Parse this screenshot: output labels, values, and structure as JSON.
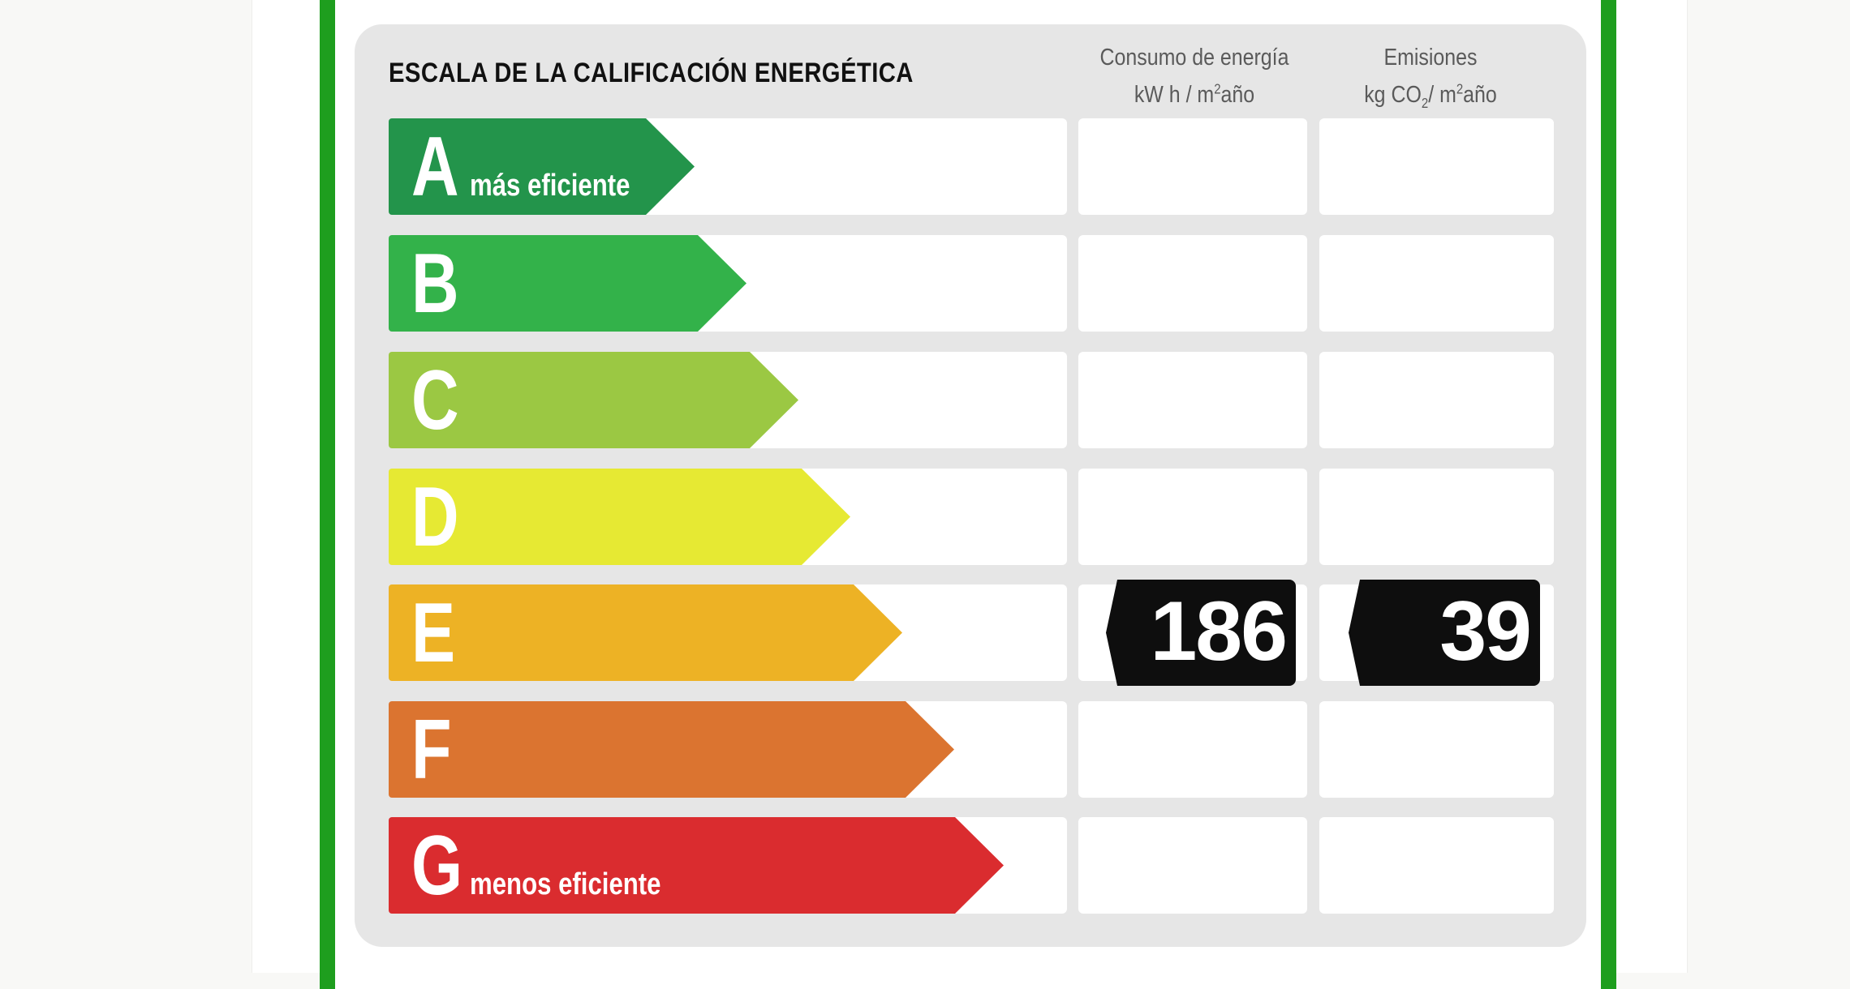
{
  "label": {
    "title": "ESCALA DE LA CALIFICACIÓN ENERGÉTICA",
    "consumo_header": {
      "line1": "Consumo de energía",
      "line2_pre": "kW h / m",
      "line2_sup": "2",
      "line2_post": "año"
    },
    "emisiones_header": {
      "line1": "Emisiones",
      "line2_pre": "kg CO",
      "line2_sub": "2",
      "line2_mid": "/ m",
      "line2_sup": "2",
      "line2_post": "año"
    },
    "ratings": [
      {
        "letter": "A",
        "sublabel": "más eficiente",
        "color": "#23944b"
      },
      {
        "letter": "B",
        "sublabel": "",
        "color": "#33b24a"
      },
      {
        "letter": "C",
        "sublabel": "",
        "color": "#9bc843"
      },
      {
        "letter": "D",
        "sublabel": "",
        "color": "#e6e933"
      },
      {
        "letter": "E",
        "sublabel": "",
        "color": "#edb225"
      },
      {
        "letter": "F",
        "sublabel": "",
        "color": "#db7430"
      },
      {
        "letter": "G",
        "sublabel": "menos eficiente",
        "color": "#da2c2f"
      }
    ],
    "current_rating": "E",
    "consumo_value": "186",
    "emisiones_value": "39"
  },
  "colors": {
    "frame_border": "#1e9e1e",
    "panel_background": "#e6e6e6",
    "indicator_background": "#0e0e0e"
  }
}
